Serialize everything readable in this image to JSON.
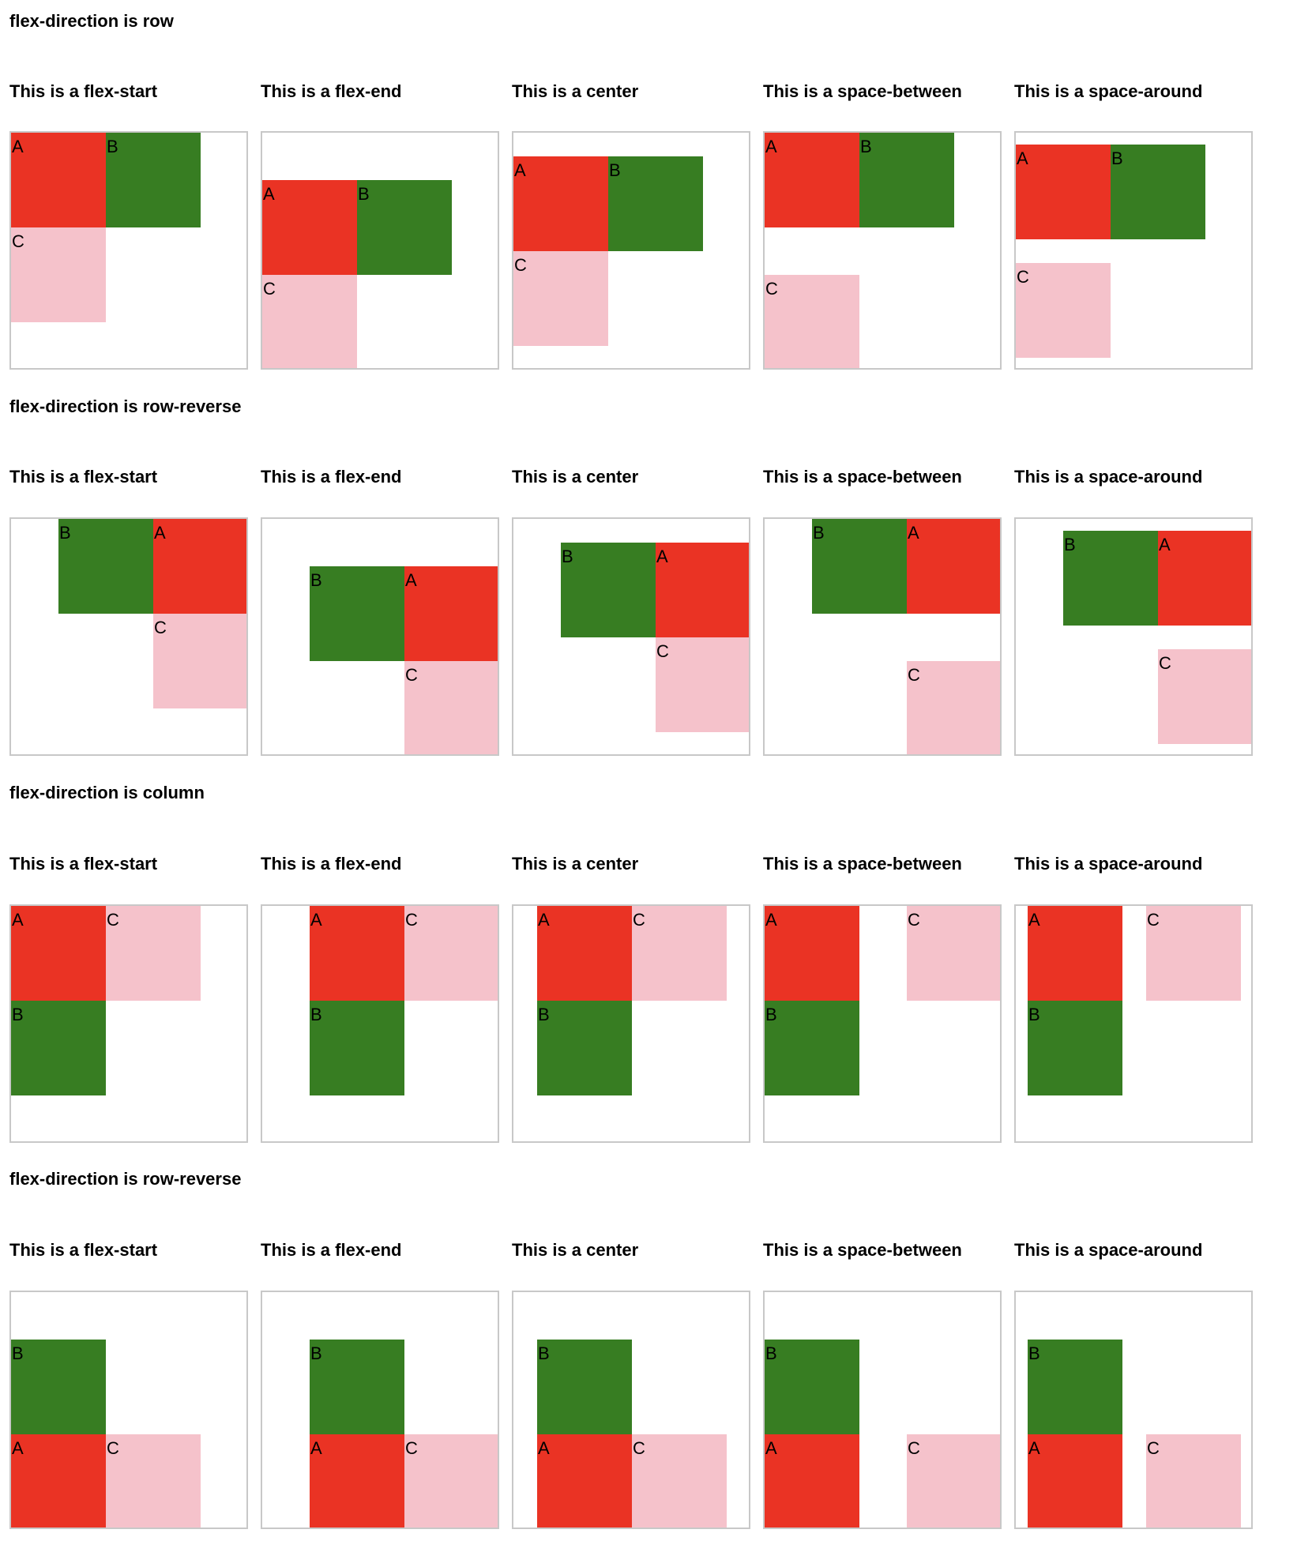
{
  "sections": [
    {
      "title": "flex-direction is row",
      "demos": [
        {
          "title": "This is a flex-start"
        },
        {
          "title": "This is a flex-end"
        },
        {
          "title": "This is a center"
        },
        {
          "title": "This is a space-between"
        },
        {
          "title": "This is a space-around"
        }
      ]
    },
    {
      "title": "flex-direction is row-reverse",
      "demos": [
        {
          "title": "This is a flex-start"
        },
        {
          "title": "This is a flex-end"
        },
        {
          "title": "This is a center"
        },
        {
          "title": "This is a space-between"
        },
        {
          "title": "This is a space-around"
        }
      ]
    },
    {
      "title": "flex-direction is column",
      "demos": [
        {
          "title": "This is a flex-start"
        },
        {
          "title": "This is a flex-end"
        },
        {
          "title": "This is a center"
        },
        {
          "title": "This is a space-between"
        },
        {
          "title": "This is a space-around"
        }
      ]
    },
    {
      "title": "flex-direction is row-reverse",
      "demos": [
        {
          "title": "This is a flex-start"
        },
        {
          "title": "This is a flex-end"
        },
        {
          "title": "This is a center"
        },
        {
          "title": "This is a space-between"
        },
        {
          "title": "This is a space-around"
        }
      ]
    }
  ],
  "item_labels": {
    "a": "A",
    "b": "B",
    "c": "C"
  },
  "colors": {
    "a": "#ea3324",
    "b": "#377d22",
    "c": "#f5c2cb",
    "border": "#c8c8c8"
  }
}
